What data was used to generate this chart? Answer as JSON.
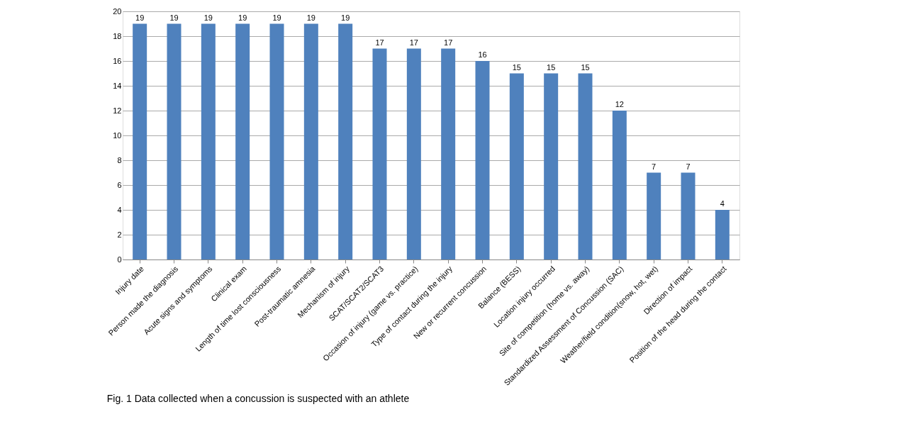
{
  "chart_data": {
    "type": "bar",
    "categories": [
      "Injury date",
      "Person made the diagnosis",
      "Acute signs and symptoms",
      "Clinical exam",
      "Length of time lost consciousness",
      "Post-traumatic amnesia",
      "Mechanism of injury",
      "SCAT/SCAT2/SCAT3",
      "Occasion of injury  (game vs. practice)",
      "Type of contact during the injury",
      "New or recurrent concussion",
      "Balance (BESS)",
      "Location injury occurred",
      "Site of competition (home vs. away)",
      "Standardized Assessment of Concussion (SAC)",
      "Weather/field condition(snow, hot, wet)",
      "Direction of impact",
      "Position of the head during the contact"
    ],
    "values": [
      19,
      19,
      19,
      19,
      19,
      19,
      19,
      17,
      17,
      17,
      16,
      15,
      15,
      15,
      12,
      7,
      7,
      4
    ],
    "color": "#4f81bd",
    "ylim": [
      0,
      20
    ],
    "yticks": [
      0,
      2,
      4,
      6,
      8,
      10,
      12,
      14,
      16,
      18,
      20
    ],
    "grid": "y",
    "data_labels": true,
    "annotations": [
      "Fig. 1 Data collected when a concussion is suspected with an athlete"
    ]
  }
}
